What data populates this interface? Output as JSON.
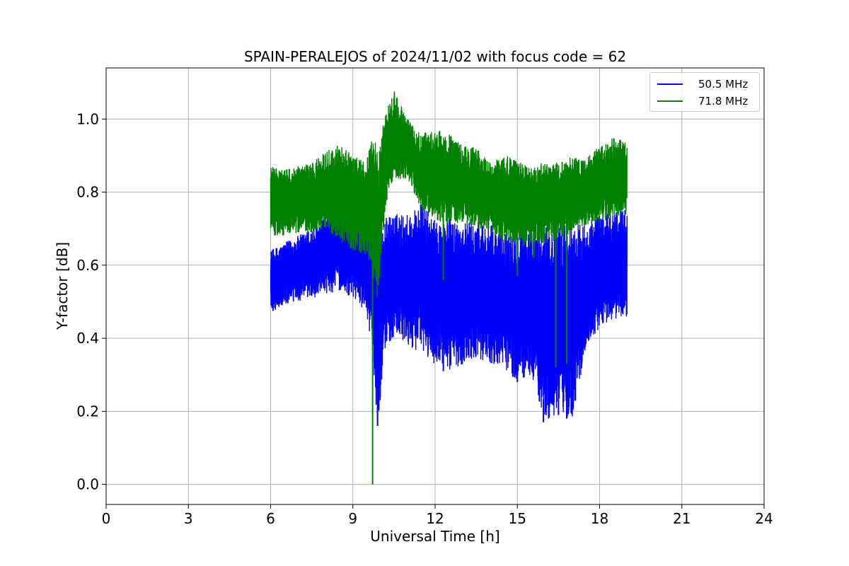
{
  "chart_data": {
    "type": "line",
    "title": "SPAIN-PERALEJOS of 2024/11/02 with focus code = 62",
    "xlabel": "Universal Time [h]",
    "ylabel": "Y-factor [dB]",
    "xlim": [
      0,
      24
    ],
    "ylim": [
      -0.055,
      1.14
    ],
    "xticks": [
      "0",
      "3",
      "6",
      "9",
      "12",
      "15",
      "18",
      "21",
      "24"
    ],
    "yticks": [
      "0.0",
      "0.2",
      "0.4",
      "0.6",
      "0.8",
      "1.0"
    ],
    "grid": true,
    "legend_position": "top-right",
    "series": [
      {
        "name": "50.5 MHz",
        "color": "#0000ff",
        "envelope": {
          "x": [
            6.0,
            6.5,
            7.0,
            7.5,
            8.0,
            8.5,
            9.0,
            9.5,
            9.7,
            9.9,
            10.2,
            10.5,
            11.0,
            11.5,
            12.0,
            12.5,
            13.0,
            13.5,
            14.0,
            14.5,
            15.0,
            15.5,
            16.0,
            16.5,
            17.0,
            17.5,
            18.0,
            18.5,
            19.0
          ],
          "y_max": [
            0.64,
            0.66,
            0.68,
            0.7,
            0.73,
            0.83,
            0.84,
            0.86,
            0.72,
            0.7,
            0.73,
            0.74,
            0.74,
            0.77,
            0.72,
            0.73,
            0.72,
            0.73,
            0.71,
            0.69,
            0.73,
            0.69,
            0.7,
            0.73,
            0.71,
            0.72,
            0.74,
            0.75,
            0.76
          ],
          "y_min": [
            0.47,
            0.49,
            0.5,
            0.51,
            0.52,
            0.53,
            0.51,
            0.47,
            0.37,
            0.16,
            0.38,
            0.4,
            0.38,
            0.36,
            0.33,
            0.31,
            0.33,
            0.35,
            0.33,
            0.32,
            0.28,
            0.3,
            0.17,
            0.19,
            0.18,
            0.37,
            0.43,
            0.45,
            0.46
          ]
        },
        "spikes": [
          [
            9.78,
            0.37
          ],
          [
            9.9,
            0.16
          ],
          [
            12.3,
            0.31
          ],
          [
            15.0,
            0.28
          ],
          [
            15.95,
            0.17
          ],
          [
            16.5,
            0.19
          ],
          [
            16.8,
            0.18
          ]
        ]
      },
      {
        "name": "71.8 MHz",
        "color": "#008000",
        "envelope": {
          "x": [
            6.0,
            6.5,
            7.0,
            7.5,
            8.0,
            8.5,
            9.0,
            9.5,
            9.7,
            9.9,
            10.2,
            10.5,
            11.0,
            11.5,
            12.0,
            12.5,
            13.0,
            13.5,
            14.0,
            14.5,
            15.0,
            15.5,
            16.0,
            16.5,
            17.0,
            17.5,
            18.0,
            18.5,
            19.0
          ],
          "y_max": [
            0.87,
            0.86,
            0.87,
            0.88,
            0.91,
            0.93,
            0.9,
            0.88,
            0.98,
            0.91,
            1.02,
            1.08,
            1.0,
            0.96,
            0.97,
            0.96,
            0.93,
            0.92,
            0.88,
            0.9,
            0.89,
            0.87,
            0.88,
            0.88,
            0.9,
            0.89,
            0.93,
            0.95,
            0.94
          ],
          "y_min": [
            0.68,
            0.68,
            0.69,
            0.69,
            0.7,
            0.67,
            0.64,
            0.63,
            0.58,
            0.5,
            0.76,
            0.83,
            0.84,
            0.75,
            0.72,
            0.71,
            0.72,
            0.7,
            0.69,
            0.66,
            0.66,
            0.65,
            0.66,
            0.67,
            0.69,
            0.71,
            0.72,
            0.73,
            0.74
          ]
        },
        "spikes": [
          [
            9.72,
            0.0
          ],
          [
            12.3,
            0.56
          ],
          [
            15.0,
            0.57
          ],
          [
            15.6,
            0.62
          ],
          [
            16.4,
            0.32
          ],
          [
            16.8,
            0.33
          ]
        ]
      }
    ]
  }
}
